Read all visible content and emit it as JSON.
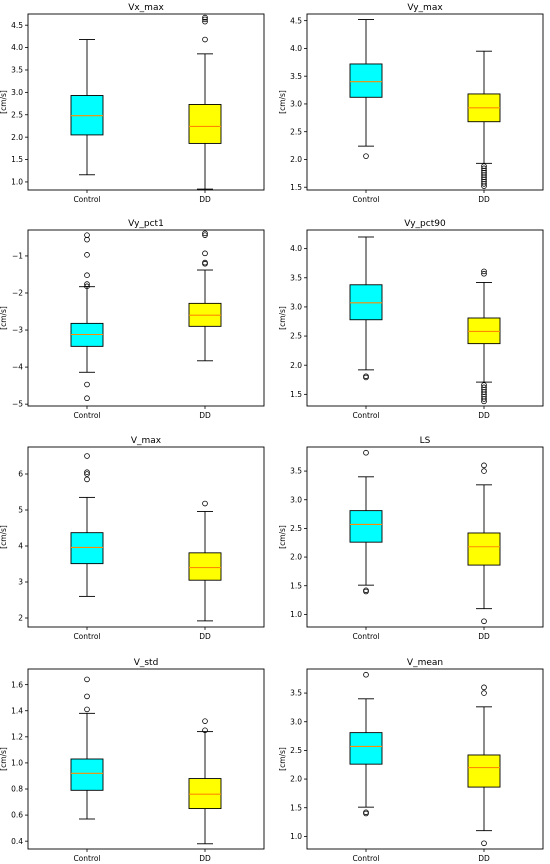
{
  "chart_data": [
    {
      "type": "box",
      "title": "Vx_max",
      "ylabel": "[cm/s]",
      "categories": [
        "Control",
        "DD"
      ],
      "ylim": [
        0.82,
        4.75
      ],
      "yticks": [
        1.0,
        1.5,
        2.0,
        2.5,
        3.0,
        3.5,
        4.0,
        4.5
      ],
      "boxes": [
        {
          "name": "Control",
          "color": "#00FFFF",
          "whisker_low": 1.16,
          "q1": 2.05,
          "median": 2.48,
          "q3": 2.93,
          "whisker_high": 4.18,
          "outliers": []
        },
        {
          "name": "DD",
          "color": "#FFFF00",
          "whisker_low": 0.84,
          "q1": 1.86,
          "median": 2.24,
          "q3": 2.73,
          "whisker_high": 3.86,
          "outliers": [
            4.18,
            4.58,
            4.63,
            4.67
          ]
        }
      ]
    },
    {
      "type": "box",
      "title": "Vy_max",
      "ylabel": "[cm/s]",
      "categories": [
        "Control",
        "DD"
      ],
      "ylim": [
        1.45,
        4.62
      ],
      "yticks": [
        1.5,
        2.0,
        2.5,
        3.0,
        3.5,
        4.0,
        4.5
      ],
      "boxes": [
        {
          "name": "Control",
          "color": "#00FFFF",
          "whisker_low": 2.24,
          "q1": 3.12,
          "median": 3.4,
          "q3": 3.72,
          "whisker_high": 4.52,
          "outliers": [
            2.06
          ]
        },
        {
          "name": "DD",
          "color": "#FFFF00",
          "whisker_low": 1.93,
          "q1": 2.68,
          "median": 2.93,
          "q3": 3.18,
          "whisker_high": 3.95,
          "outliers": [
            1.52,
            1.56,
            1.6,
            1.64,
            1.68,
            1.72,
            1.76,
            1.8,
            1.84,
            1.88
          ]
        }
      ]
    },
    {
      "type": "box",
      "title": "Vy_pct1",
      "ylabel": "[cm/s]",
      "categories": [
        "Control",
        "DD"
      ],
      "ylim": [
        -5.05,
        -0.3
      ],
      "yticks": [
        -5,
        -4,
        -3,
        -2,
        -1
      ],
      "boxes": [
        {
          "name": "Control",
          "color": "#00FFFF",
          "whisker_low": -4.14,
          "q1": -3.44,
          "median": -3.12,
          "q3": -2.82,
          "whisker_high": -1.83,
          "outliers": [
            -0.44,
            -0.56,
            -0.97,
            -1.52,
            -1.76,
            -1.82,
            -4.47,
            -4.84
          ]
        },
        {
          "name": "DD",
          "color": "#FFFF00",
          "whisker_low": -3.83,
          "q1": -2.9,
          "median": -2.6,
          "q3": -2.28,
          "whisker_high": -1.38,
          "outliers": [
            -0.39,
            -0.44,
            -0.93,
            -1.18,
            -1.21
          ]
        }
      ]
    },
    {
      "type": "box",
      "title": "Vy_pct90",
      "ylabel": "[cm/s]",
      "categories": [
        "Control",
        "DD"
      ],
      "ylim": [
        1.3,
        4.32
      ],
      "yticks": [
        1.5,
        2.0,
        2.5,
        3.0,
        3.5,
        4.0
      ],
      "boxes": [
        {
          "name": "Control",
          "color": "#00FFFF",
          "whisker_low": 1.92,
          "q1": 2.78,
          "median": 3.07,
          "q3": 3.38,
          "whisker_high": 4.2,
          "outliers": [
            1.79,
            1.81
          ]
        },
        {
          "name": "DD",
          "color": "#FFFF00",
          "whisker_low": 1.71,
          "q1": 2.37,
          "median": 2.58,
          "q3": 2.81,
          "whisker_high": 3.42,
          "outliers": [
            1.38,
            1.42,
            1.46,
            1.5,
            1.54,
            1.58,
            1.62,
            1.66,
            3.57,
            3.61
          ]
        }
      ]
    },
    {
      "type": "box",
      "title": "V_max",
      "ylabel": "[cm/s]",
      "categories": [
        "Control",
        "DD"
      ],
      "ylim": [
        1.75,
        6.75
      ],
      "yticks": [
        2,
        3,
        4,
        5,
        6
      ],
      "boxes": [
        {
          "name": "Control",
          "color": "#00FFFF",
          "whisker_low": 2.6,
          "q1": 3.51,
          "median": 3.96,
          "q3": 4.37,
          "whisker_high": 5.35,
          "outliers": [
            5.85,
            6.0,
            6.05,
            6.5
          ]
        },
        {
          "name": "DD",
          "color": "#FFFF00",
          "whisker_low": 1.92,
          "q1": 3.05,
          "median": 3.4,
          "q3": 3.81,
          "whisker_high": 4.96,
          "outliers": [
            5.18
          ]
        }
      ]
    },
    {
      "type": "box",
      "title": "LS",
      "ylabel": "[cm/s]",
      "categories": [
        "Control",
        "DD"
      ],
      "ylim": [
        0.78,
        3.92
      ],
      "yticks": [
        1.0,
        1.5,
        2.0,
        2.5,
        3.0,
        3.5
      ],
      "boxes": [
        {
          "name": "Control",
          "color": "#00FFFF",
          "whisker_low": 1.51,
          "q1": 2.26,
          "median": 2.57,
          "q3": 2.81,
          "whisker_high": 3.4,
          "outliers": [
            1.4,
            1.42,
            3.82
          ]
        },
        {
          "name": "DD",
          "color": "#FFFF00",
          "whisker_low": 1.1,
          "q1": 1.86,
          "median": 2.18,
          "q3": 2.42,
          "whisker_high": 3.26,
          "outliers": [
            0.88,
            3.5,
            3.6
          ]
        }
      ]
    },
    {
      "type": "box",
      "title": "V_std",
      "ylabel": "[cm/s]",
      "categories": [
        "Control",
        "DD"
      ],
      "ylim": [
        0.34,
        1.72
      ],
      "yticks": [
        0.4,
        0.6,
        0.8,
        1.0,
        1.2,
        1.4,
        1.6
      ],
      "boxes": [
        {
          "name": "Control",
          "color": "#00FFFF",
          "whisker_low": 0.57,
          "q1": 0.79,
          "median": 0.92,
          "q3": 1.03,
          "whisker_high": 1.38,
          "outliers": [
            1.41,
            1.51,
            1.64
          ]
        },
        {
          "name": "DD",
          "color": "#FFFF00",
          "whisker_low": 0.38,
          "q1": 0.65,
          "median": 0.76,
          "q3": 0.88,
          "whisker_high": 1.24,
          "outliers": [
            1.25,
            1.32
          ]
        }
      ]
    },
    {
      "type": "box",
      "title": "V_mean",
      "ylabel": "[cm/s]",
      "categories": [
        "Control",
        "DD"
      ],
      "ylim": [
        0.78,
        3.92
      ],
      "yticks": [
        1.0,
        1.5,
        2.0,
        2.5,
        3.0,
        3.5
      ],
      "boxes": [
        {
          "name": "Control",
          "color": "#00FFFF",
          "whisker_low": 1.51,
          "q1": 2.26,
          "median": 2.57,
          "q3": 2.81,
          "whisker_high": 3.4,
          "outliers": [
            1.4,
            1.42,
            3.82
          ]
        },
        {
          "name": "DD",
          "color": "#FFFF00",
          "whisker_low": 1.1,
          "q1": 1.86,
          "median": 2.2,
          "q3": 2.42,
          "whisker_high": 3.26,
          "outliers": [
            0.88,
            3.5,
            3.6
          ]
        }
      ]
    }
  ],
  "colors": {
    "box_edge": "#000000",
    "median_line": "#FF8C00",
    "axes": "#000000",
    "background": "#FFFFFF"
  }
}
